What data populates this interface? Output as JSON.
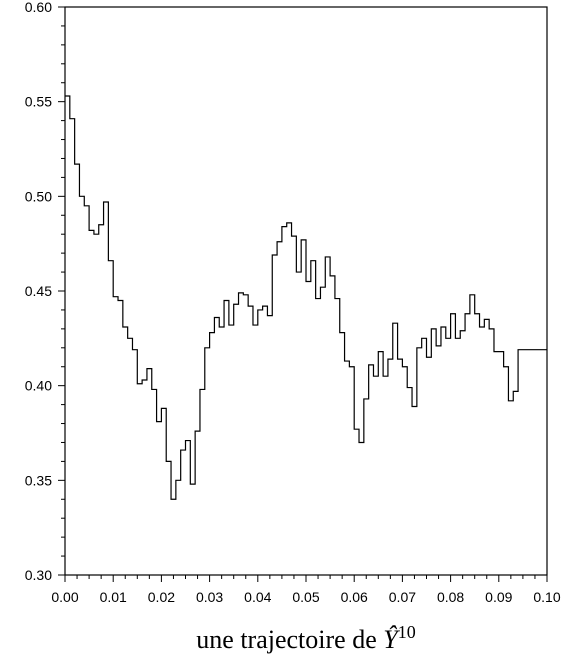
{
  "chart_data": {
    "type": "line",
    "title": "",
    "xlabel": {
      "text": "une trajectoire de ",
      "variable": "Ŷ",
      "superscript": "10"
    },
    "ylabel": "",
    "xlim": [
      0.0,
      0.1
    ],
    "ylim": [
      0.3,
      0.6
    ],
    "xticks": [
      "0.00",
      "0.01",
      "0.02",
      "0.03",
      "0.04",
      "0.05",
      "0.06",
      "0.07",
      "0.08",
      "0.09",
      "0.10"
    ],
    "yticks": [
      "0.30",
      "0.35",
      "0.40",
      "0.45",
      "0.50",
      "0.55",
      "0.60"
    ],
    "grid": false,
    "legend": "none",
    "line_color": "#000000",
    "series": [
      {
        "step": "post",
        "x": [
          0.0,
          0.001,
          0.002,
          0.003,
          0.004,
          0.005,
          0.006,
          0.007,
          0.008,
          0.009,
          0.01,
          0.011,
          0.012,
          0.013,
          0.014,
          0.015,
          0.016,
          0.017,
          0.018,
          0.019,
          0.02,
          0.021,
          0.022,
          0.023,
          0.024,
          0.025,
          0.026,
          0.027,
          0.028,
          0.029,
          0.03,
          0.031,
          0.032,
          0.033,
          0.034,
          0.035,
          0.036,
          0.037,
          0.038,
          0.039,
          0.04,
          0.041,
          0.042,
          0.043,
          0.044,
          0.045,
          0.046,
          0.047,
          0.048,
          0.049,
          0.05,
          0.051,
          0.052,
          0.053,
          0.054,
          0.055,
          0.056,
          0.057,
          0.058,
          0.059,
          0.06,
          0.061,
          0.062,
          0.063,
          0.064,
          0.065,
          0.066,
          0.067,
          0.068,
          0.069,
          0.07,
          0.071,
          0.072,
          0.073,
          0.074,
          0.075,
          0.076,
          0.077,
          0.078,
          0.079,
          0.08,
          0.081,
          0.082,
          0.083,
          0.084,
          0.085,
          0.086,
          0.087,
          0.088,
          0.089,
          0.09,
          0.091,
          0.092,
          0.093,
          0.094,
          0.095,
          0.096,
          0.097,
          0.098,
          0.099
        ],
        "values": [
          0.553,
          0.541,
          0.517,
          0.5,
          0.495,
          0.482,
          0.48,
          0.485,
          0.497,
          0.466,
          0.447,
          0.445,
          0.431,
          0.425,
          0.419,
          0.401,
          0.403,
          0.409,
          0.398,
          0.381,
          0.388,
          0.36,
          0.34,
          0.35,
          0.366,
          0.371,
          0.348,
          0.376,
          0.398,
          0.42,
          0.428,
          0.436,
          0.431,
          0.445,
          0.432,
          0.443,
          0.449,
          0.448,
          0.442,
          0.432,
          0.44,
          0.442,
          0.437,
          0.469,
          0.476,
          0.484,
          0.486,
          0.479,
          0.46,
          0.477,
          0.455,
          0.466,
          0.446,
          0.452,
          0.468,
          0.458,
          0.446,
          0.428,
          0.413,
          0.41,
          0.377,
          0.37,
          0.393,
          0.411,
          0.405,
          0.418,
          0.405,
          0.414,
          0.433,
          0.414,
          0.41,
          0.399,
          0.389,
          0.42,
          0.425,
          0.415,
          0.43,
          0.421,
          0.431,
          0.425,
          0.438,
          0.425,
          0.429,
          0.438,
          0.448,
          0.438,
          0.431,
          0.435,
          0.43,
          0.418,
          0.418,
          0.41,
          0.392,
          0.397,
          0.419,
          0.419,
          0.419,
          0.419,
          0.419,
          0.419
        ]
      }
    ]
  }
}
